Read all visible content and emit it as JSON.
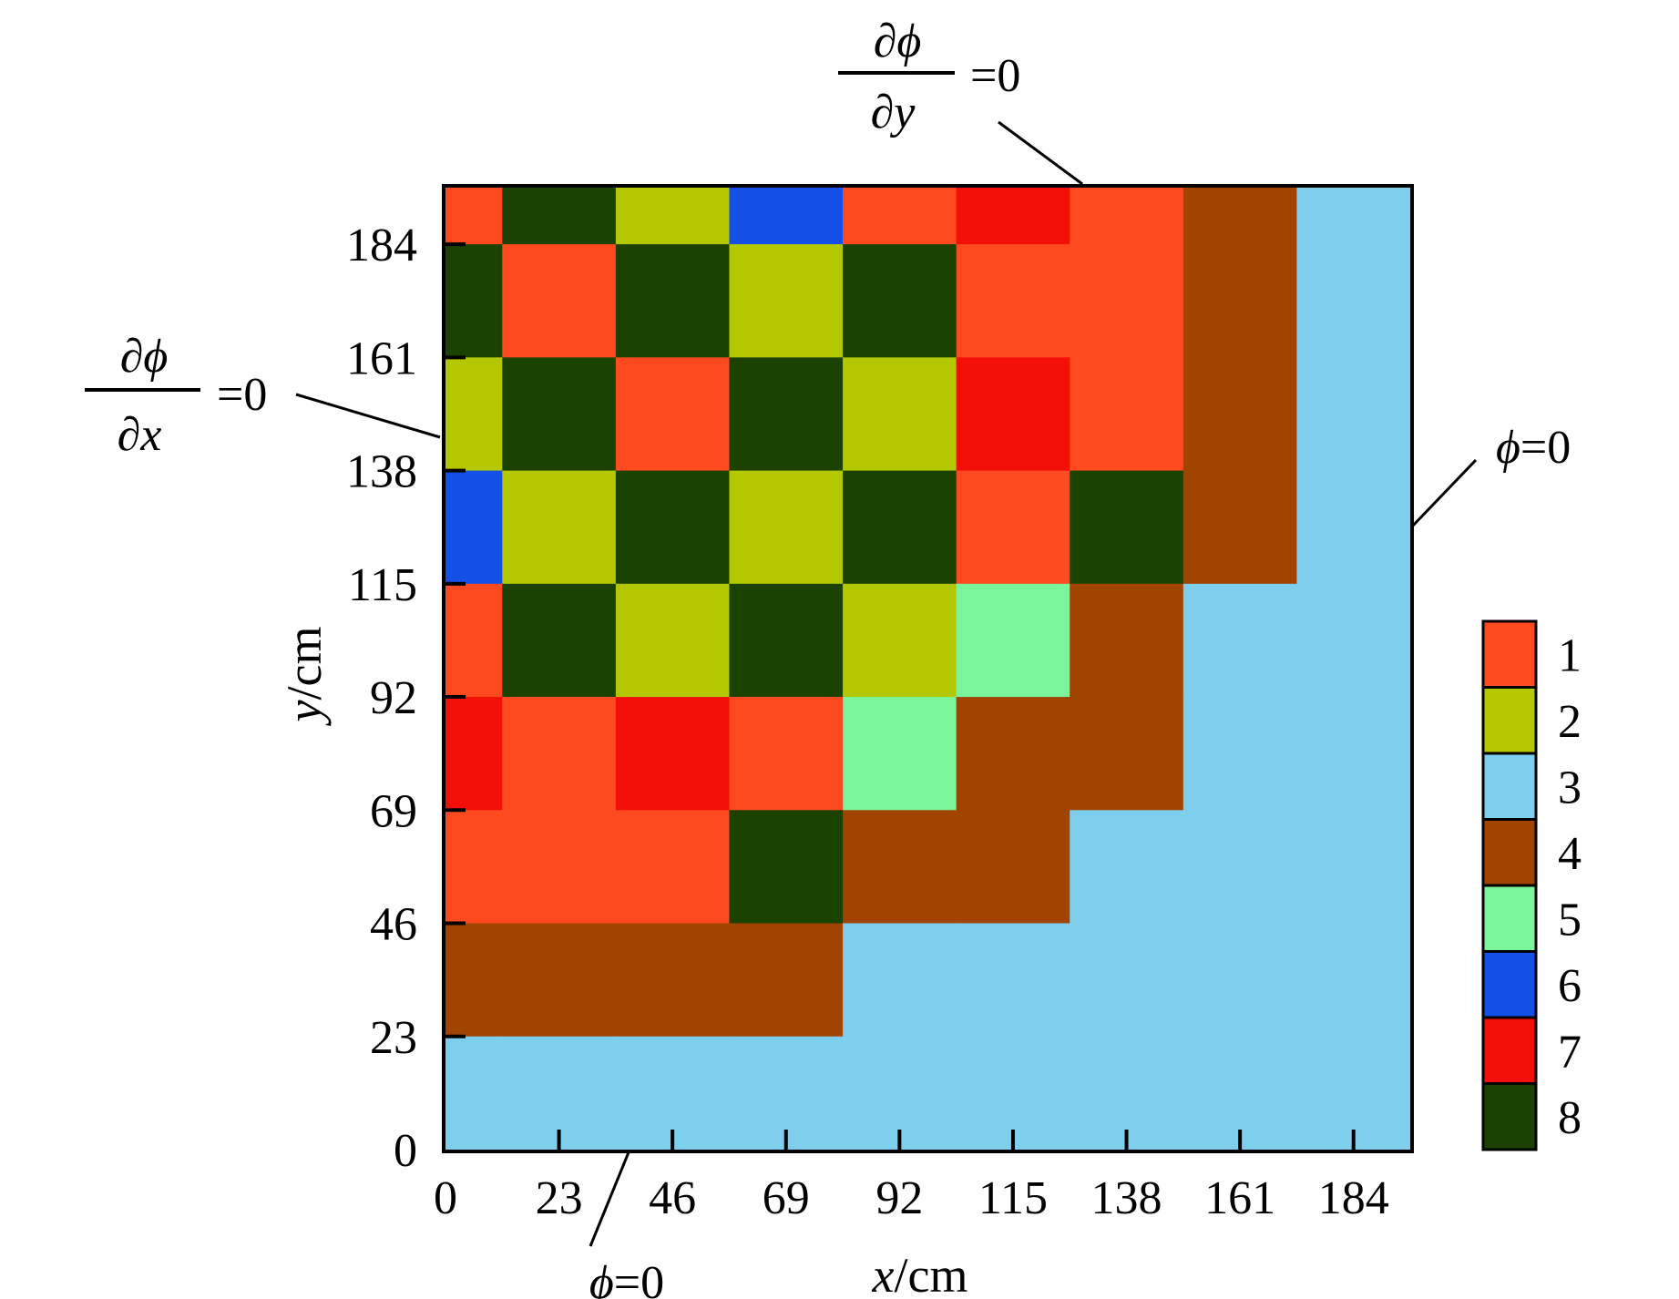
{
  "chart_data": {
    "type": "heatmap",
    "xlabel_var": "x",
    "xlabel_unit": "/cm",
    "ylabel_var": "y",
    "ylabel_unit": "/cm",
    "x_ticks": [
      "0",
      "23",
      "46",
      "69",
      "92",
      "115",
      "138",
      "161",
      "184"
    ],
    "y_ticks": [
      "0",
      "23",
      "46",
      "69",
      "92",
      "115",
      "138",
      "161",
      "184"
    ],
    "domain_xlim": [
      0,
      195.5
    ],
    "domain_ylim": [
      0,
      195.5
    ],
    "cell_size": 23,
    "columns_x_start": [
      0,
      11.5,
      34.5,
      57.5,
      80.5,
      103.5,
      126.5,
      149.5,
      172.5
    ],
    "columns_width": [
      11.5,
      23,
      23,
      23,
      23,
      23,
      23,
      23,
      23
    ],
    "rows_y_start_from_top": [
      195.5,
      184,
      161,
      138,
      115,
      92,
      69,
      46,
      23
    ],
    "rows_height": [
      11.5,
      23,
      23,
      23,
      23,
      23,
      23,
      23,
      23
    ],
    "materials_grid": [
      [
        1,
        8,
        2,
        6,
        1,
        7,
        1,
        4,
        3
      ],
      [
        8,
        1,
        8,
        2,
        8,
        1,
        1,
        4,
        3
      ],
      [
        2,
        8,
        1,
        8,
        2,
        7,
        1,
        4,
        3
      ],
      [
        6,
        2,
        8,
        2,
        8,
        1,
        8,
        4,
        3
      ],
      [
        1,
        8,
        2,
        8,
        2,
        5,
        4,
        3,
        3
      ],
      [
        7,
        1,
        7,
        1,
        5,
        4,
        4,
        3,
        3
      ],
      [
        1,
        1,
        1,
        8,
        4,
        4,
        3,
        3,
        3
      ],
      [
        4,
        4,
        4,
        4,
        3,
        3,
        3,
        3,
        3
      ],
      [
        3,
        3,
        3,
        3,
        3,
        3,
        3,
        3,
        3
      ]
    ],
    "legend": [
      {
        "label": "1",
        "color": "#ff4a1f"
      },
      {
        "label": "2",
        "color": "#b3c800"
      },
      {
        "label": "3",
        "color": "#7ecfee"
      },
      {
        "label": "4",
        "color": "#a04400"
      },
      {
        "label": "5",
        "color": "#7bf59c"
      },
      {
        "label": "6",
        "color": "#1450e8"
      },
      {
        "label": "7",
        "color": "#f20f08"
      },
      {
        "label": "8",
        "color": "#1b4200"
      }
    ]
  },
  "boundary_conditions": {
    "top": {
      "numerator": "∂ϕ",
      "denominator": "∂y",
      "rhs": "=0"
    },
    "left": {
      "numerator": "∂ϕ",
      "denominator": "∂x",
      "rhs": "=0"
    },
    "right": {
      "phi": "ϕ",
      "rhs": "=0"
    },
    "bottom": {
      "phi": "ϕ",
      "rhs": "=0"
    }
  }
}
